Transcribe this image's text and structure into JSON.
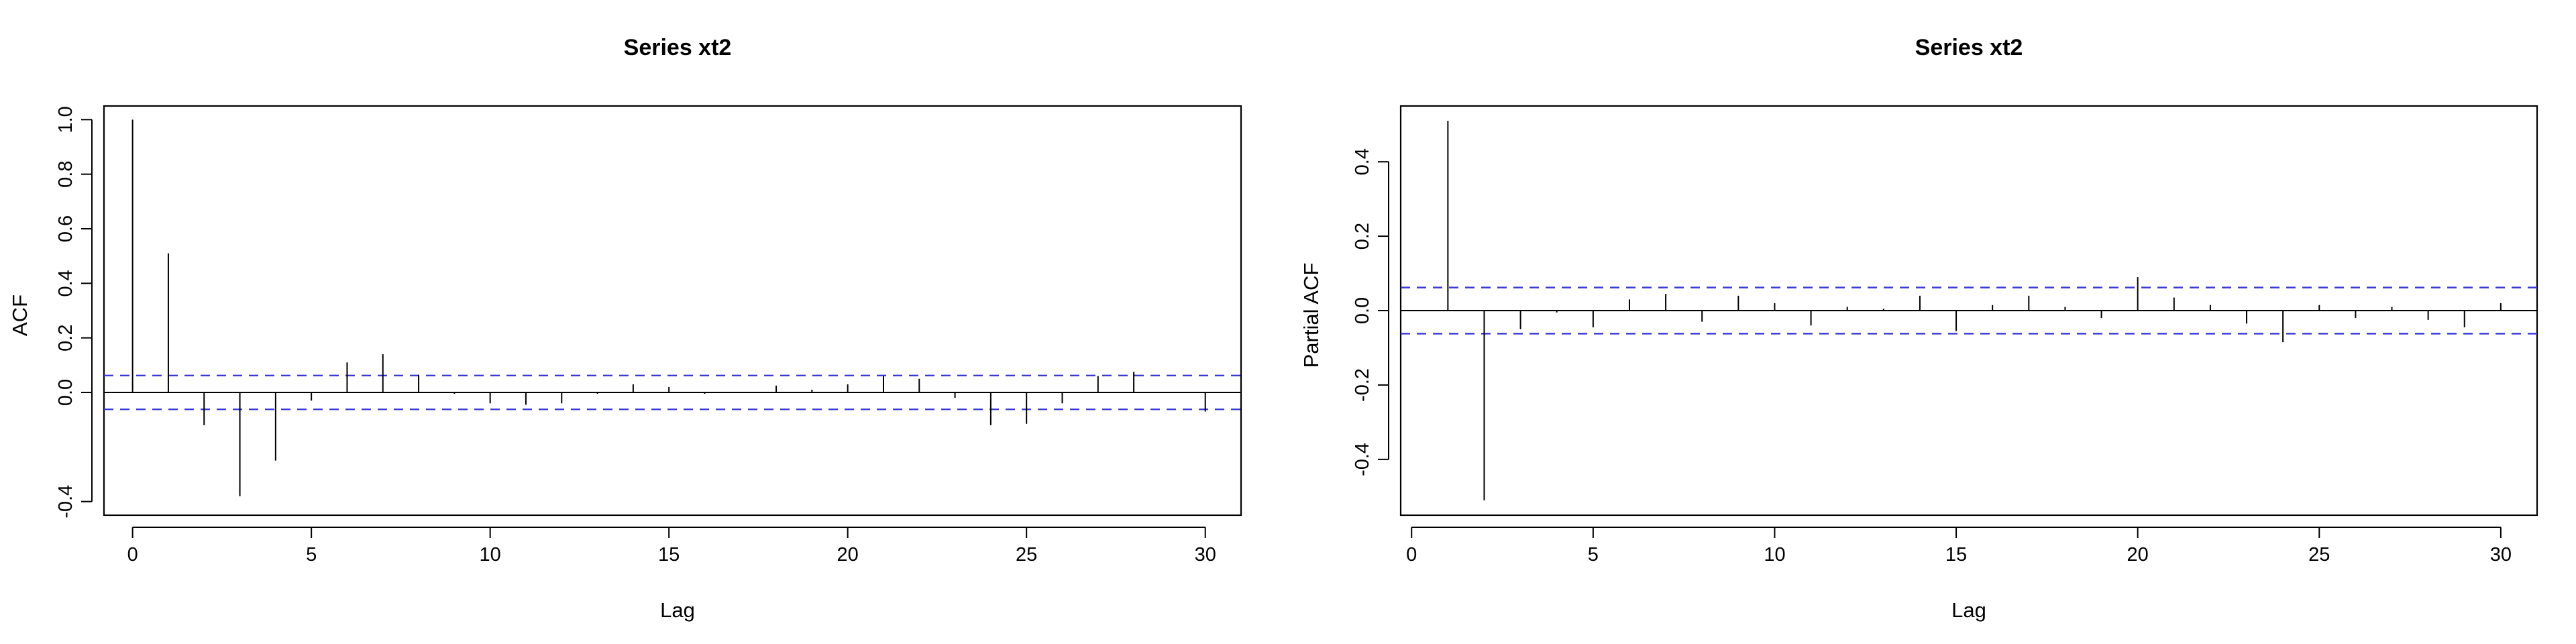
{
  "chart_data": [
    {
      "type": "bar",
      "title": "Series  xt2",
      "xlabel": "Lag",
      "ylabel": "ACF",
      "xlim": [
        -0.8,
        31
      ],
      "ylim": [
        -0.45,
        1.05
      ],
      "x_ticks": [
        0,
        5,
        10,
        15,
        20,
        25,
        30
      ],
      "y_ticks": [
        -0.4,
        0.0,
        0.2,
        0.4,
        0.6,
        0.8,
        1.0
      ],
      "y_tick_labels": [
        "-0.4",
        "0.0",
        "0.2",
        "0.4",
        "0.6",
        "0.8",
        "1.0"
      ],
      "ci": 0.062,
      "ci_color": "#3b3bd4",
      "x": [
        0,
        1,
        2,
        3,
        4,
        5,
        6,
        7,
        8,
        9,
        10,
        11,
        12,
        13,
        14,
        15,
        16,
        17,
        18,
        19,
        20,
        21,
        22,
        23,
        24,
        25,
        26,
        27,
        28,
        29,
        30
      ],
      "values": [
        1.0,
        0.51,
        -0.12,
        -0.38,
        -0.25,
        -0.03,
        0.11,
        0.14,
        0.065,
        -0.005,
        -0.04,
        -0.045,
        -0.04,
        -0.005,
        0.03,
        0.02,
        -0.005,
        0.0,
        0.025,
        0.01,
        0.03,
        0.06,
        0.05,
        -0.02,
        -0.12,
        -0.115,
        -0.04,
        0.06,
        0.075,
        0.0,
        -0.07
      ]
    },
    {
      "type": "bar",
      "title": "Series  xt2",
      "xlabel": "Lag",
      "ylabel": "Partial ACF",
      "xlim": [
        -0.3,
        31
      ],
      "ylim": [
        -0.55,
        0.55
      ],
      "x_ticks": [
        0,
        5,
        10,
        15,
        20,
        25,
        30
      ],
      "y_ticks": [
        -0.4,
        -0.2,
        0.0,
        0.2,
        0.4
      ],
      "y_tick_labels": [
        "-0.4",
        "-0.2",
        "0.0",
        "0.2",
        "0.4"
      ],
      "ci": 0.062,
      "ci_color": "#3b3bd4",
      "x": [
        1,
        2,
        3,
        4,
        5,
        6,
        7,
        8,
        9,
        10,
        11,
        12,
        13,
        14,
        15,
        16,
        17,
        18,
        19,
        20,
        21,
        22,
        23,
        24,
        25,
        26,
        27,
        28,
        29,
        30
      ],
      "values": [
        0.51,
        -0.51,
        -0.05,
        -0.005,
        -0.045,
        0.03,
        0.045,
        -0.03,
        0.04,
        0.02,
        -0.04,
        0.01,
        0.005,
        0.04,
        -0.055,
        0.015,
        0.04,
        0.01,
        -0.02,
        0.09,
        0.035,
        0.015,
        -0.035,
        -0.085,
        0.015,
        -0.02,
        0.01,
        -0.025,
        -0.045,
        0.02
      ]
    }
  ]
}
